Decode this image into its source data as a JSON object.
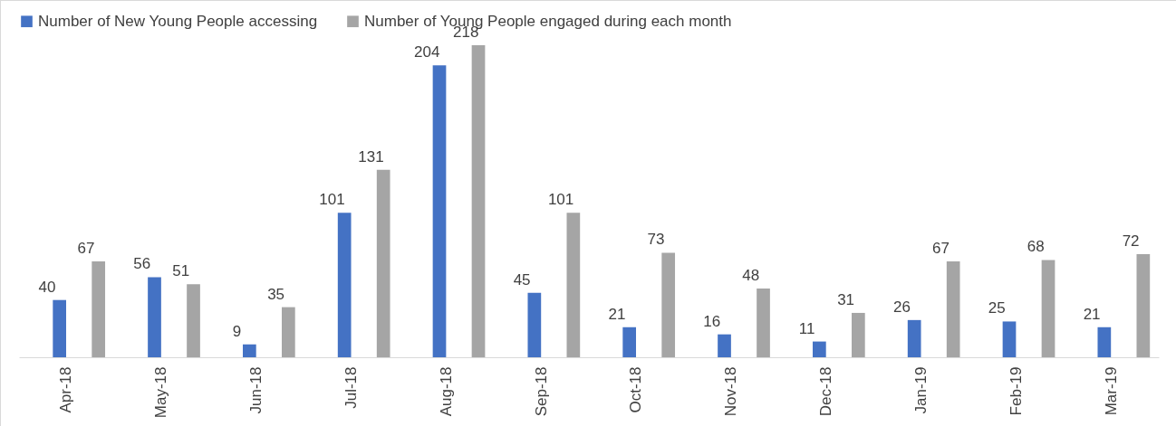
{
  "chart_data": {
    "type": "bar",
    "categories": [
      "Apr-18",
      "May-18",
      "Jun-18",
      "Jul-18",
      "Aug-18",
      "Sep-18",
      "Oct-18",
      "Nov-18",
      "Dec-18",
      "Jan-19",
      "Feb-19",
      "Mar-19"
    ],
    "series": [
      {
        "name": "Number of New Young People accessing",
        "color": "#4472c4",
        "values": [
          40,
          56,
          9,
          101,
          204,
          45,
          21,
          16,
          11,
          26,
          25,
          21
        ]
      },
      {
        "name": "Number of Young People engaged during each month",
        "color": "#a5a5a5",
        "values": [
          67,
          51,
          35,
          131,
          218,
          101,
          73,
          48,
          31,
          67,
          68,
          72
        ]
      }
    ],
    "data_labels": true,
    "legend": "top",
    "grid": false
  }
}
